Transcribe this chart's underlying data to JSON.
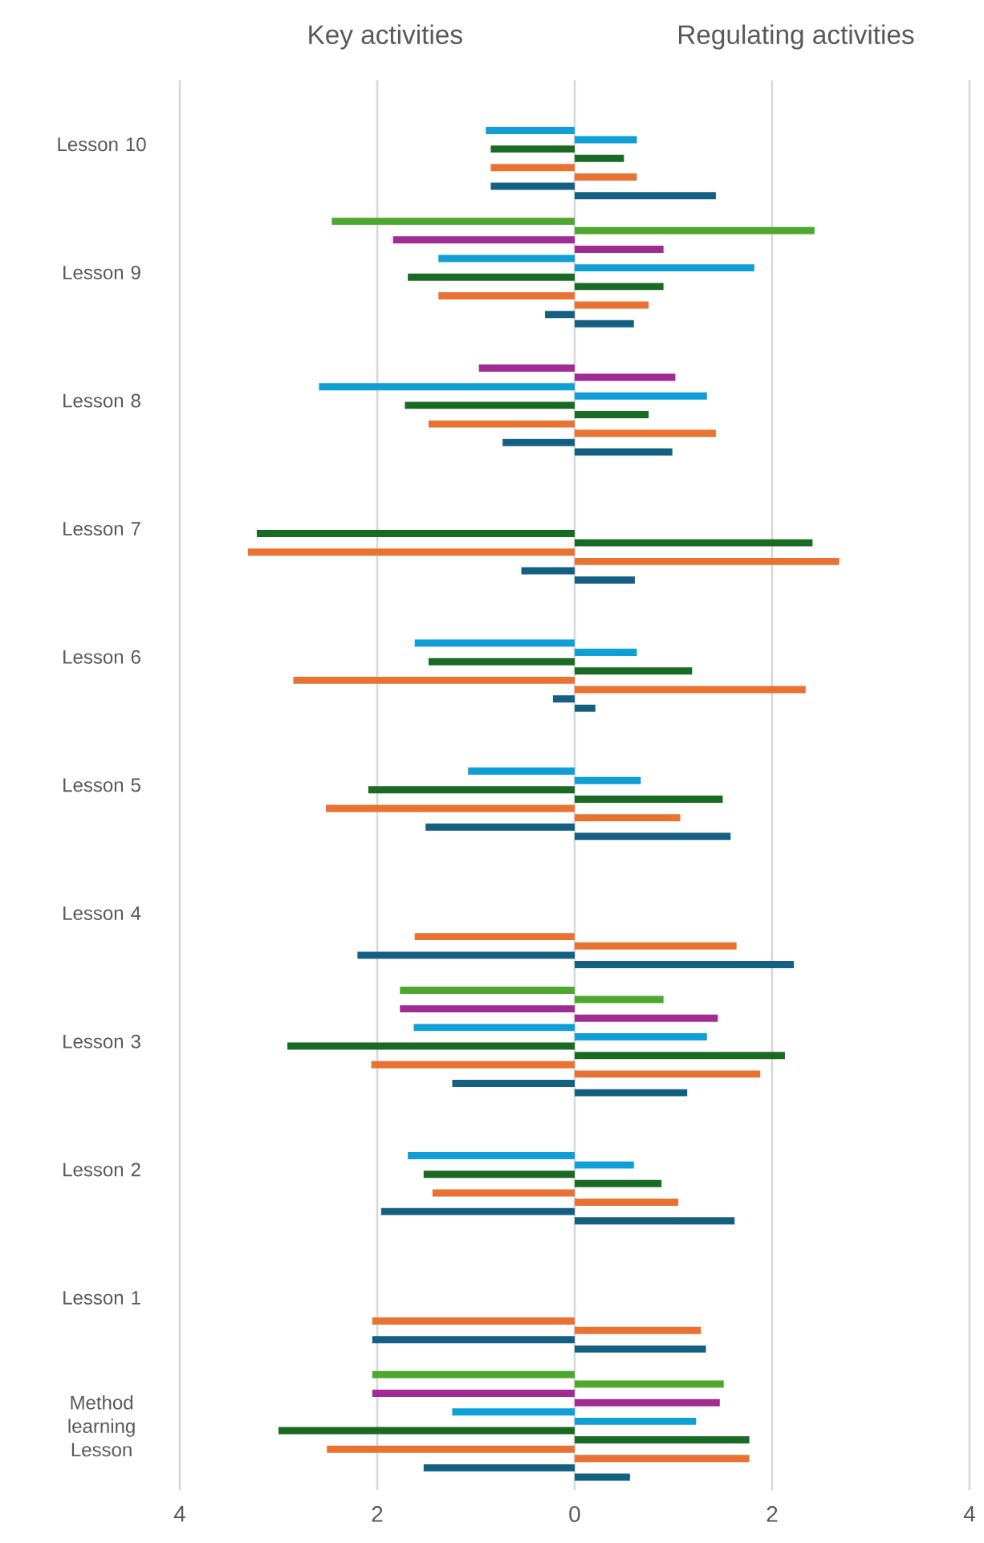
{
  "chart_data": {
    "type": "bar",
    "orientation": "horizontal",
    "grid": "x",
    "annotations": [
      "Key activities",
      "Regulating activities"
    ],
    "categories": [
      "Lesson 10",
      "Lesson 9",
      "Lesson 8",
      "Lesson 7",
      "Lesson 6",
      "Lesson 5",
      "Lesson 4",
      "Lesson 3",
      "Lesson 2",
      "Lesson 1",
      "Method learning Lesson"
    ],
    "xlim": [
      -4,
      4
    ],
    "xticks": [
      {
        "value": -4,
        "label": "4"
      },
      {
        "value": -2,
        "label": "2"
      },
      0,
      2,
      4
    ],
    "series": [
      {
        "color": "#4ea72e",
        "values": [
          null,
          -2.46,
          null,
          null,
          null,
          null,
          null,
          -1.77,
          null,
          null,
          -2.05
        ]
      },
      {
        "color": "#4ea72e",
        "values": [
          null,
          2.43,
          null,
          null,
          null,
          null,
          null,
          0.9,
          null,
          null,
          1.51
        ]
      },
      {
        "color": "#a02b93",
        "values": [
          null,
          -1.84,
          -0.97,
          null,
          null,
          null,
          null,
          -1.77,
          null,
          null,
          -2.05
        ]
      },
      {
        "color": "#a02b93",
        "values": [
          null,
          0.9,
          1.02,
          null,
          null,
          null,
          null,
          1.45,
          null,
          null,
          1.47
        ]
      },
      {
        "color": "#0f9ed5",
        "values": [
          -0.9,
          -1.38,
          -2.59,
          null,
          -1.62,
          -1.08,
          null,
          -1.63,
          -1.69,
          null,
          -1.24
        ]
      },
      {
        "color": "#0f9ed5",
        "values": [
          0.63,
          1.82,
          1.34,
          null,
          0.63,
          0.67,
          null,
          1.34,
          0.6,
          null,
          1.23
        ]
      },
      {
        "color": "#196b24",
        "values": [
          -0.85,
          -1.69,
          -1.72,
          -3.22,
          -1.48,
          -2.09,
          null,
          -2.91,
          -1.53,
          null,
          -3.0
        ]
      },
      {
        "color": "#196b24",
        "values": [
          0.5,
          0.9,
          0.75,
          2.41,
          1.19,
          1.5,
          null,
          2.13,
          0.88,
          null,
          1.77
        ]
      },
      {
        "color": "#e97132",
        "values": [
          -0.85,
          -1.38,
          -1.48,
          -3.31,
          -2.85,
          -2.52,
          -1.62,
          -2.06,
          -1.44,
          -2.05,
          -2.51
        ]
      },
      {
        "color": "#e97132",
        "values": [
          0.63,
          0.75,
          1.43,
          2.68,
          2.34,
          1.07,
          1.64,
          1.88,
          1.05,
          1.28,
          1.77
        ]
      },
      {
        "color": "#156082",
        "values": [
          -0.85,
          -0.3,
          -0.73,
          -0.54,
          -0.22,
          -1.51,
          -2.2,
          -1.24,
          -1.96,
          -2.05,
          -1.53
        ]
      },
      {
        "color": "#156082",
        "values": [
          1.43,
          0.6,
          0.99,
          0.61,
          0.21,
          1.58,
          2.22,
          1.14,
          1.62,
          1.33,
          0.56
        ]
      }
    ]
  }
}
